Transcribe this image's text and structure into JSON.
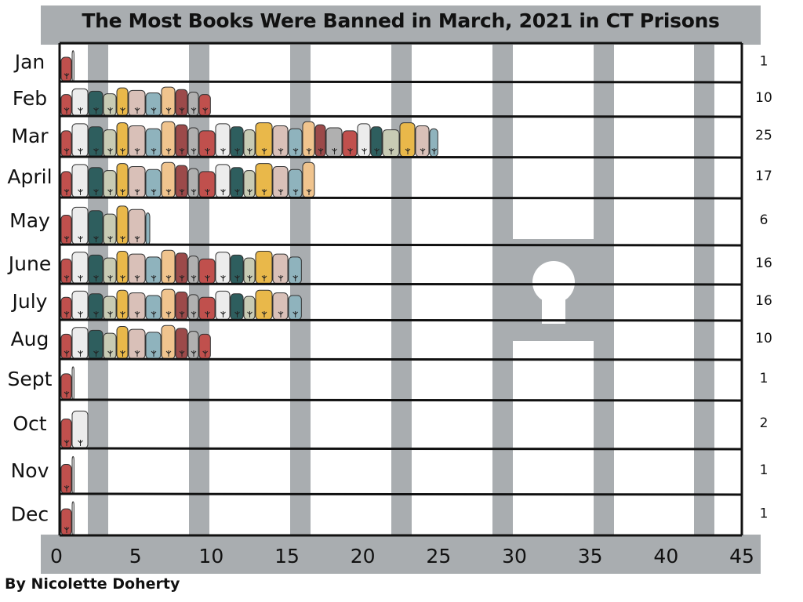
{
  "chart_data": {
    "type": "bar",
    "title": "The Most Books Were Banned in March, 2021 in CT Prisons",
    "categories": [
      "Jan",
      "Feb",
      "Mar",
      "April",
      "May",
      "June",
      "July",
      "Aug",
      "Sept",
      "Oct",
      "Nov",
      "Dec"
    ],
    "values": [
      1,
      10,
      25,
      17,
      6,
      16,
      16,
      10,
      1,
      2,
      1,
      1
    ],
    "value_labels": [
      "1",
      "10",
      "25",
      "17",
      "6",
      "16",
      "16",
      "10",
      "1",
      "2",
      "1",
      "1"
    ],
    "xlim": [
      0,
      45
    ],
    "x_ticks": [
      0,
      5,
      10,
      15,
      20,
      25,
      30,
      35,
      40,
      45
    ],
    "x_tick_labels": [
      "0",
      "5",
      "10",
      "15",
      "20",
      "25",
      "30",
      "35",
      "40",
      "45"
    ],
    "orientation": "horizontal",
    "xlabel": "",
    "ylabel": ""
  },
  "byline": "By Nicolette Doherty",
  "colors": {
    "frame": "#a9adb0",
    "bars_behind": "#a9adb0",
    "ink": "#111111",
    "book_palette": [
      "#c0504d",
      "#ececec",
      "#2e5e5e",
      "#c8cbb4",
      "#e9b84a",
      "#d9c0b8",
      "#8fb3bd",
      "#f0c48e",
      "#9c4a4a",
      "#b0b0b0"
    ]
  }
}
